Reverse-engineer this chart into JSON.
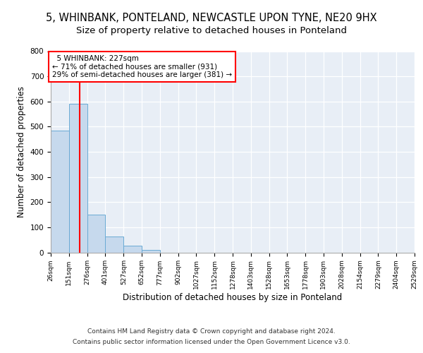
{
  "title1": "5, WHINBANK, PONTELAND, NEWCASTLE UPON TYNE, NE20 9HX",
  "title2": "Size of property relative to detached houses in Ponteland",
  "xlabel": "Distribution of detached houses by size in Ponteland",
  "ylabel": "Number of detached properties",
  "bar_edges": [
    26,
    151,
    276,
    401,
    527,
    652,
    777,
    902,
    1027,
    1152,
    1278,
    1403,
    1528,
    1653,
    1778,
    1903,
    2028,
    2154,
    2279,
    2404,
    2529
  ],
  "bar_heights": [
    484,
    591,
    150,
    63,
    28,
    10,
    0,
    0,
    0,
    0,
    0,
    0,
    0,
    0,
    0,
    0,
    0,
    0,
    0,
    0
  ],
  "bar_color": "#c6d9ed",
  "bar_edge_color": "#6aaad4",
  "vline_x": 227,
  "vline_color": "red",
  "annotation_text": "  5 WHINBANK: 227sqm\n← 71% of detached houses are smaller (931)\n29% of semi-detached houses are larger (381) →",
  "annotation_box_color": "white",
  "annotation_box_edge": "red",
  "ylim": [
    0,
    800
  ],
  "yticks": [
    0,
    100,
    200,
    300,
    400,
    500,
    600,
    700,
    800
  ],
  "background_color": "#e8eef6",
  "footer1": "Contains HM Land Registry data © Crown copyright and database right 2024.",
  "footer2": "Contains public sector information licensed under the Open Government Licence v3.0.",
  "title1_fontsize": 10.5,
  "title2_fontsize": 9.5,
  "tick_label_fontsize": 6.5,
  "ylabel_fontsize": 8.5,
  "xlabel_fontsize": 8.5,
  "footer_fontsize": 6.5
}
